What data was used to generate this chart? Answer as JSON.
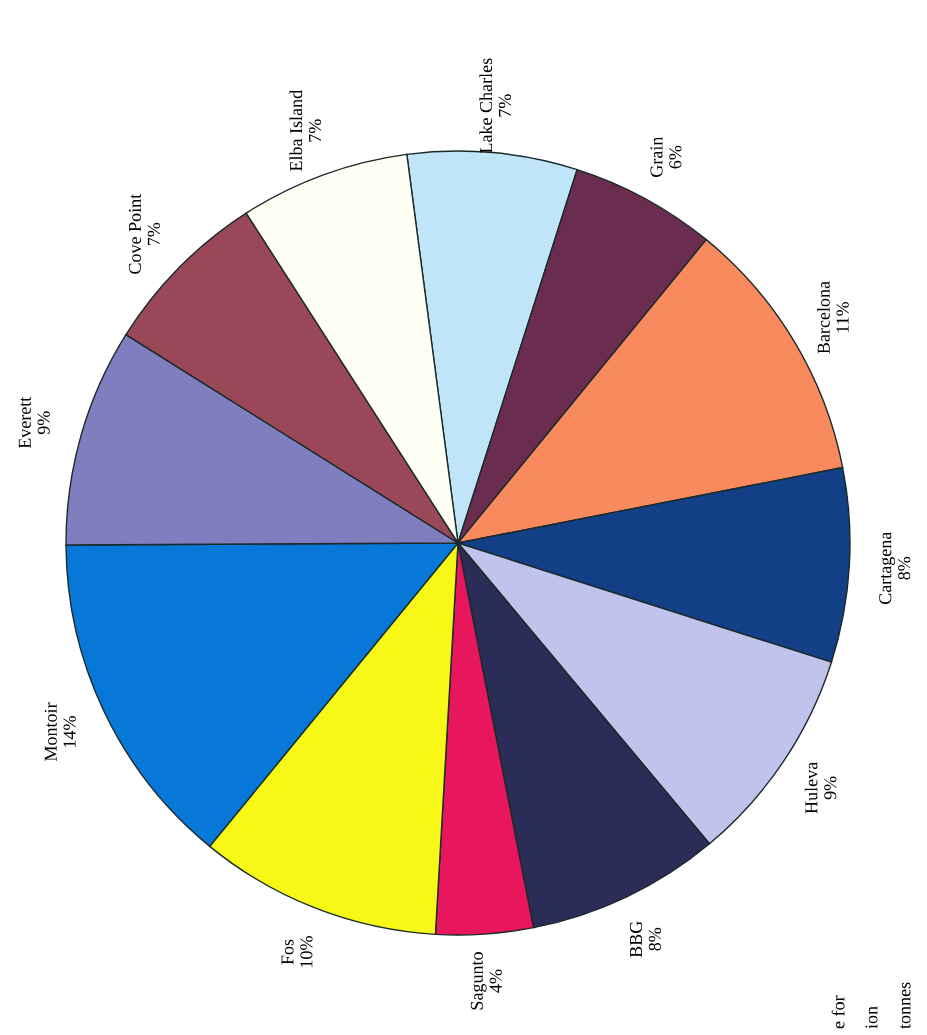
{
  "chart_data": {
    "type": "pie",
    "categories": [
      "Lake Charles",
      "Grain",
      "Barcelona",
      "Cartagena",
      "Huleva",
      "BBG",
      "Sagunto",
      "Fos",
      "Montoir",
      "Everett",
      "Cove Point",
      "Elba Island"
    ],
    "values": [
      7,
      6,
      11,
      8,
      9,
      8,
      4,
      10,
      14,
      9,
      7,
      7
    ],
    "colors": [
      "#c0e4f8",
      "#6b2d4f",
      "#f98a5e",
      "#123f85",
      "#c0c4ec",
      "#2c2c58",
      "#e8175d",
      "#f8f818",
      "#0878d8",
      "#7f7fbf",
      "#9a4758",
      "#fffff4"
    ],
    "value_labels": [
      "7%",
      "6%",
      "11%",
      "8%",
      "9%",
      "8%",
      "4%",
      "10%",
      "14%",
      "9%",
      "7%",
      "7%"
    ],
    "annotations": [
      "e for",
      "ion",
      "tonnes"
    ]
  }
}
